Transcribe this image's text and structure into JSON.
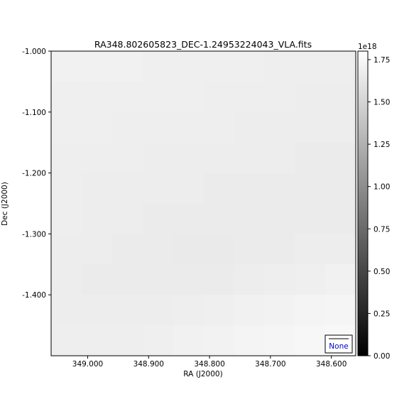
{
  "chart_data": {
    "type": "heatmap",
    "title": "RA348.802605823_DEC-1.24953224043_VLA.fits",
    "xlabel": "RA (J2000)",
    "ylabel": "Dec (J2000)",
    "xlim": [
      349.06,
      348.56
    ],
    "ylim": [
      -1.5,
      -1.0
    ],
    "xticks": [
      349.0,
      348.9,
      348.8,
      348.7,
      348.6
    ],
    "xtick_labels": [
      "349.000",
      "348.900",
      "348.800",
      "348.700",
      "348.600"
    ],
    "yticks": [
      -1.0,
      -1.1,
      -1.2,
      -1.3,
      -1.4
    ],
    "ytick_labels": [
      "-1.000",
      "-1.100",
      "-1.200",
      "-1.300",
      "-1.400"
    ],
    "colorbar": {
      "scale_label": "1e18",
      "range": [
        0.0,
        1.8
      ],
      "colormap": "gray",
      "ticks": [
        0.0,
        0.25,
        0.5,
        0.75,
        1.0,
        1.25,
        1.5,
        1.75
      ],
      "tick_labels": [
        "0.00",
        "0.25",
        "0.50",
        "0.75",
        "1.00",
        "1.25",
        "1.50",
        "1.75"
      ]
    },
    "legend": {
      "label": "None",
      "placement": "bottom-right"
    },
    "grid": false,
    "image_values_e18": [
      [
        1.7,
        1.7,
        1.7,
        1.69,
        1.69,
        1.69,
        1.69,
        1.68,
        1.68,
        1.68
      ],
      [
        1.69,
        1.69,
        1.69,
        1.69,
        1.69,
        1.68,
        1.68,
        1.68,
        1.67,
        1.67
      ],
      [
        1.69,
        1.69,
        1.68,
        1.68,
        1.68,
        1.68,
        1.67,
        1.67,
        1.67,
        1.67
      ],
      [
        1.68,
        1.68,
        1.68,
        1.67,
        1.67,
        1.67,
        1.67,
        1.67,
        1.66,
        1.66
      ],
      [
        1.68,
        1.67,
        1.67,
        1.67,
        1.67,
        1.66,
        1.66,
        1.66,
        1.66,
        1.66
      ],
      [
        1.68,
        1.67,
        1.67,
        1.66,
        1.66,
        1.66,
        1.66,
        1.66,
        1.66,
        1.66
      ],
      [
        1.67,
        1.67,
        1.66,
        1.66,
        1.65,
        1.65,
        1.66,
        1.66,
        1.67,
        1.67
      ],
      [
        1.67,
        1.66,
        1.66,
        1.66,
        1.66,
        1.66,
        1.67,
        1.68,
        1.69,
        1.7
      ],
      [
        1.67,
        1.67,
        1.67,
        1.67,
        1.68,
        1.69,
        1.7,
        1.71,
        1.72,
        1.73
      ],
      [
        1.68,
        1.68,
        1.68,
        1.69,
        1.7,
        1.71,
        1.72,
        1.73,
        1.74,
        1.75
      ]
    ]
  }
}
